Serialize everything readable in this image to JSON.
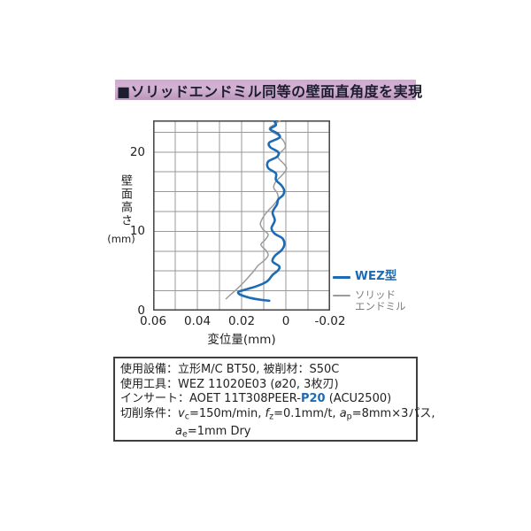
{
  "header": {
    "title": "■ソリッドエンドミル同等の壁面直角度を実現",
    "bg": "#c7a4c7",
    "text_color": "#1d1d30"
  },
  "colors": {
    "accent_blue": "#1c6bb4",
    "curve_gray": "#9b9b9b",
    "legend_gray_text": "#7d7d7d",
    "grid": "#999999",
    "plot_border": "#4c4c4c",
    "spec_border": "#3f3f3f"
  },
  "chart_data": {
    "type": "line",
    "title": "",
    "xlabel": "変位量(mm)",
    "ylabel": "壁面高さ",
    "ylabel_unit": "(mm)",
    "xlim": [
      0.06,
      -0.02
    ],
    "ylim": [
      0,
      24
    ],
    "x_grid_step": 0.01,
    "y_grid_step": 2.5,
    "grid": true,
    "legend_position": "right",
    "x_ticks": [
      0.06,
      0.04,
      0.02,
      0,
      -0.02
    ],
    "x_tick_labels": [
      "0.06",
      "0.04",
      "0.02",
      "0",
      "-0.02"
    ],
    "y_ticks": [
      0,
      10,
      20
    ],
    "y_tick_labels": [
      "0",
      "10",
      "20"
    ],
    "grid_color": "#999999",
    "plot_border_color": "#4c4c4c",
    "series": [
      {
        "name": "WEZ型",
        "legend_lines": [
          "WEZ型"
        ],
        "legend_text_color": "#1c6bb4",
        "legend_bold": true,
        "color": "#1c6bb4",
        "width": 2.6,
        "points": [
          [
            0.0055,
            24.0
          ],
          [
            0.0045,
            23.4
          ],
          [
            0.007,
            22.9
          ],
          [
            0.0035,
            22.3
          ],
          [
            0.003,
            21.8
          ],
          [
            0.0075,
            21.2
          ],
          [
            0.007,
            20.6
          ],
          [
            0.0035,
            20.0
          ],
          [
            0.004,
            19.4
          ],
          [
            0.008,
            18.8
          ],
          [
            0.008,
            18.0
          ],
          [
            0.0045,
            17.3
          ],
          [
            0.0045,
            16.5
          ],
          [
            0.002,
            15.8
          ],
          [
            0.0008,
            15.2
          ],
          [
            0.0012,
            14.6
          ],
          [
            0.0035,
            14.0
          ],
          [
            0.004,
            13.4
          ],
          [
            0.006,
            12.4
          ],
          [
            0.005,
            11.4
          ],
          [
            0.0065,
            10.4
          ],
          [
            0.005,
            9.7
          ],
          [
            0.0015,
            9.1
          ],
          [
            0.0007,
            8.3
          ],
          [
            0.002,
            7.6
          ],
          [
            0.005,
            6.9
          ],
          [
            0.006,
            6.2
          ],
          [
            0.003,
            5.6
          ],
          [
            0.0035,
            5.1
          ],
          [
            0.006,
            4.5
          ],
          [
            0.0085,
            3.7
          ],
          [
            0.013,
            3.1
          ],
          [
            0.019,
            2.6
          ],
          [
            0.0215,
            2.35
          ],
          [
            0.0205,
            2.0
          ],
          [
            0.016,
            1.6
          ],
          [
            0.011,
            1.35
          ],
          [
            0.0075,
            1.25
          ]
        ]
      },
      {
        "name": "ソリッドエンドミル",
        "legend_lines": [
          "ソリッド",
          "エンドミル"
        ],
        "legend_text_color": "#7d7d7d",
        "legend_bold": false,
        "color": "#9b9b9b",
        "width": 1.5,
        "points": [
          [
            0.0025,
            24.0
          ],
          [
            0.0045,
            23.6
          ],
          [
            0.0075,
            22.9
          ],
          [
            0.003,
            22.0
          ],
          [
            0.0008,
            21.3
          ],
          [
            0.0003,
            20.6
          ],
          [
            0.0025,
            19.9
          ],
          [
            0.0035,
            19.3
          ],
          [
            0.0005,
            18.4
          ],
          [
            -0.0002,
            17.8
          ],
          [
            0.002,
            17.0
          ],
          [
            0.0045,
            16.3
          ],
          [
            0.0055,
            15.5
          ],
          [
            0.004,
            14.9
          ],
          [
            0.0035,
            14.2
          ],
          [
            0.005,
            13.5
          ],
          [
            0.008,
            12.6
          ],
          [
            0.01,
            11.9
          ],
          [
            0.0115,
            11.0
          ],
          [
            0.0105,
            10.3
          ],
          [
            0.008,
            9.6
          ],
          [
            0.0095,
            8.9
          ],
          [
            0.0113,
            8.3
          ],
          [
            0.009,
            7.6
          ],
          [
            0.008,
            7.0
          ],
          [
            0.0095,
            6.4
          ],
          [
            0.0125,
            5.7
          ],
          [
            0.0145,
            5.0
          ],
          [
            0.017,
            4.2
          ],
          [
            0.02,
            3.3
          ],
          [
            0.023,
            2.5
          ],
          [
            0.0255,
            1.9
          ],
          [
            0.027,
            1.5
          ]
        ]
      }
    ]
  },
  "specs": {
    "lines": [
      {
        "indent": 0,
        "segments": [
          {
            "t": "使用設備：立形M/C BT50, 被削材：S50C"
          }
        ]
      },
      {
        "indent": 0,
        "segments": [
          {
            "t": "使用工具：WEZ 11020E03 (ø20, 3枚刃)"
          }
        ]
      },
      {
        "indent": 0,
        "segments": [
          {
            "t": "インサート：AOET 11T308PEER-"
          },
          {
            "t": "P20",
            "style": "accent"
          },
          {
            "t": " (ACU2500)"
          }
        ]
      },
      {
        "indent": 0,
        "segments": [
          {
            "t": "切削条件："
          },
          {
            "t": "v",
            "style": "i"
          },
          {
            "t": "c",
            "style": "sub"
          },
          {
            "t": "=150m/min, "
          },
          {
            "t": "f",
            "style": "i"
          },
          {
            "t": "z",
            "style": "sub"
          },
          {
            "t": "=0.1mm/t, "
          },
          {
            "t": "a",
            "style": "i"
          },
          {
            "t": "p",
            "style": "sub"
          },
          {
            "t": "=8mm×3パス,"
          }
        ]
      },
      {
        "indent": 62,
        "segments": [
          {
            "t": "a",
            "style": "i"
          },
          {
            "t": "e",
            "style": "sub"
          },
          {
            "t": "=1mm  Dry"
          }
        ]
      }
    ]
  }
}
